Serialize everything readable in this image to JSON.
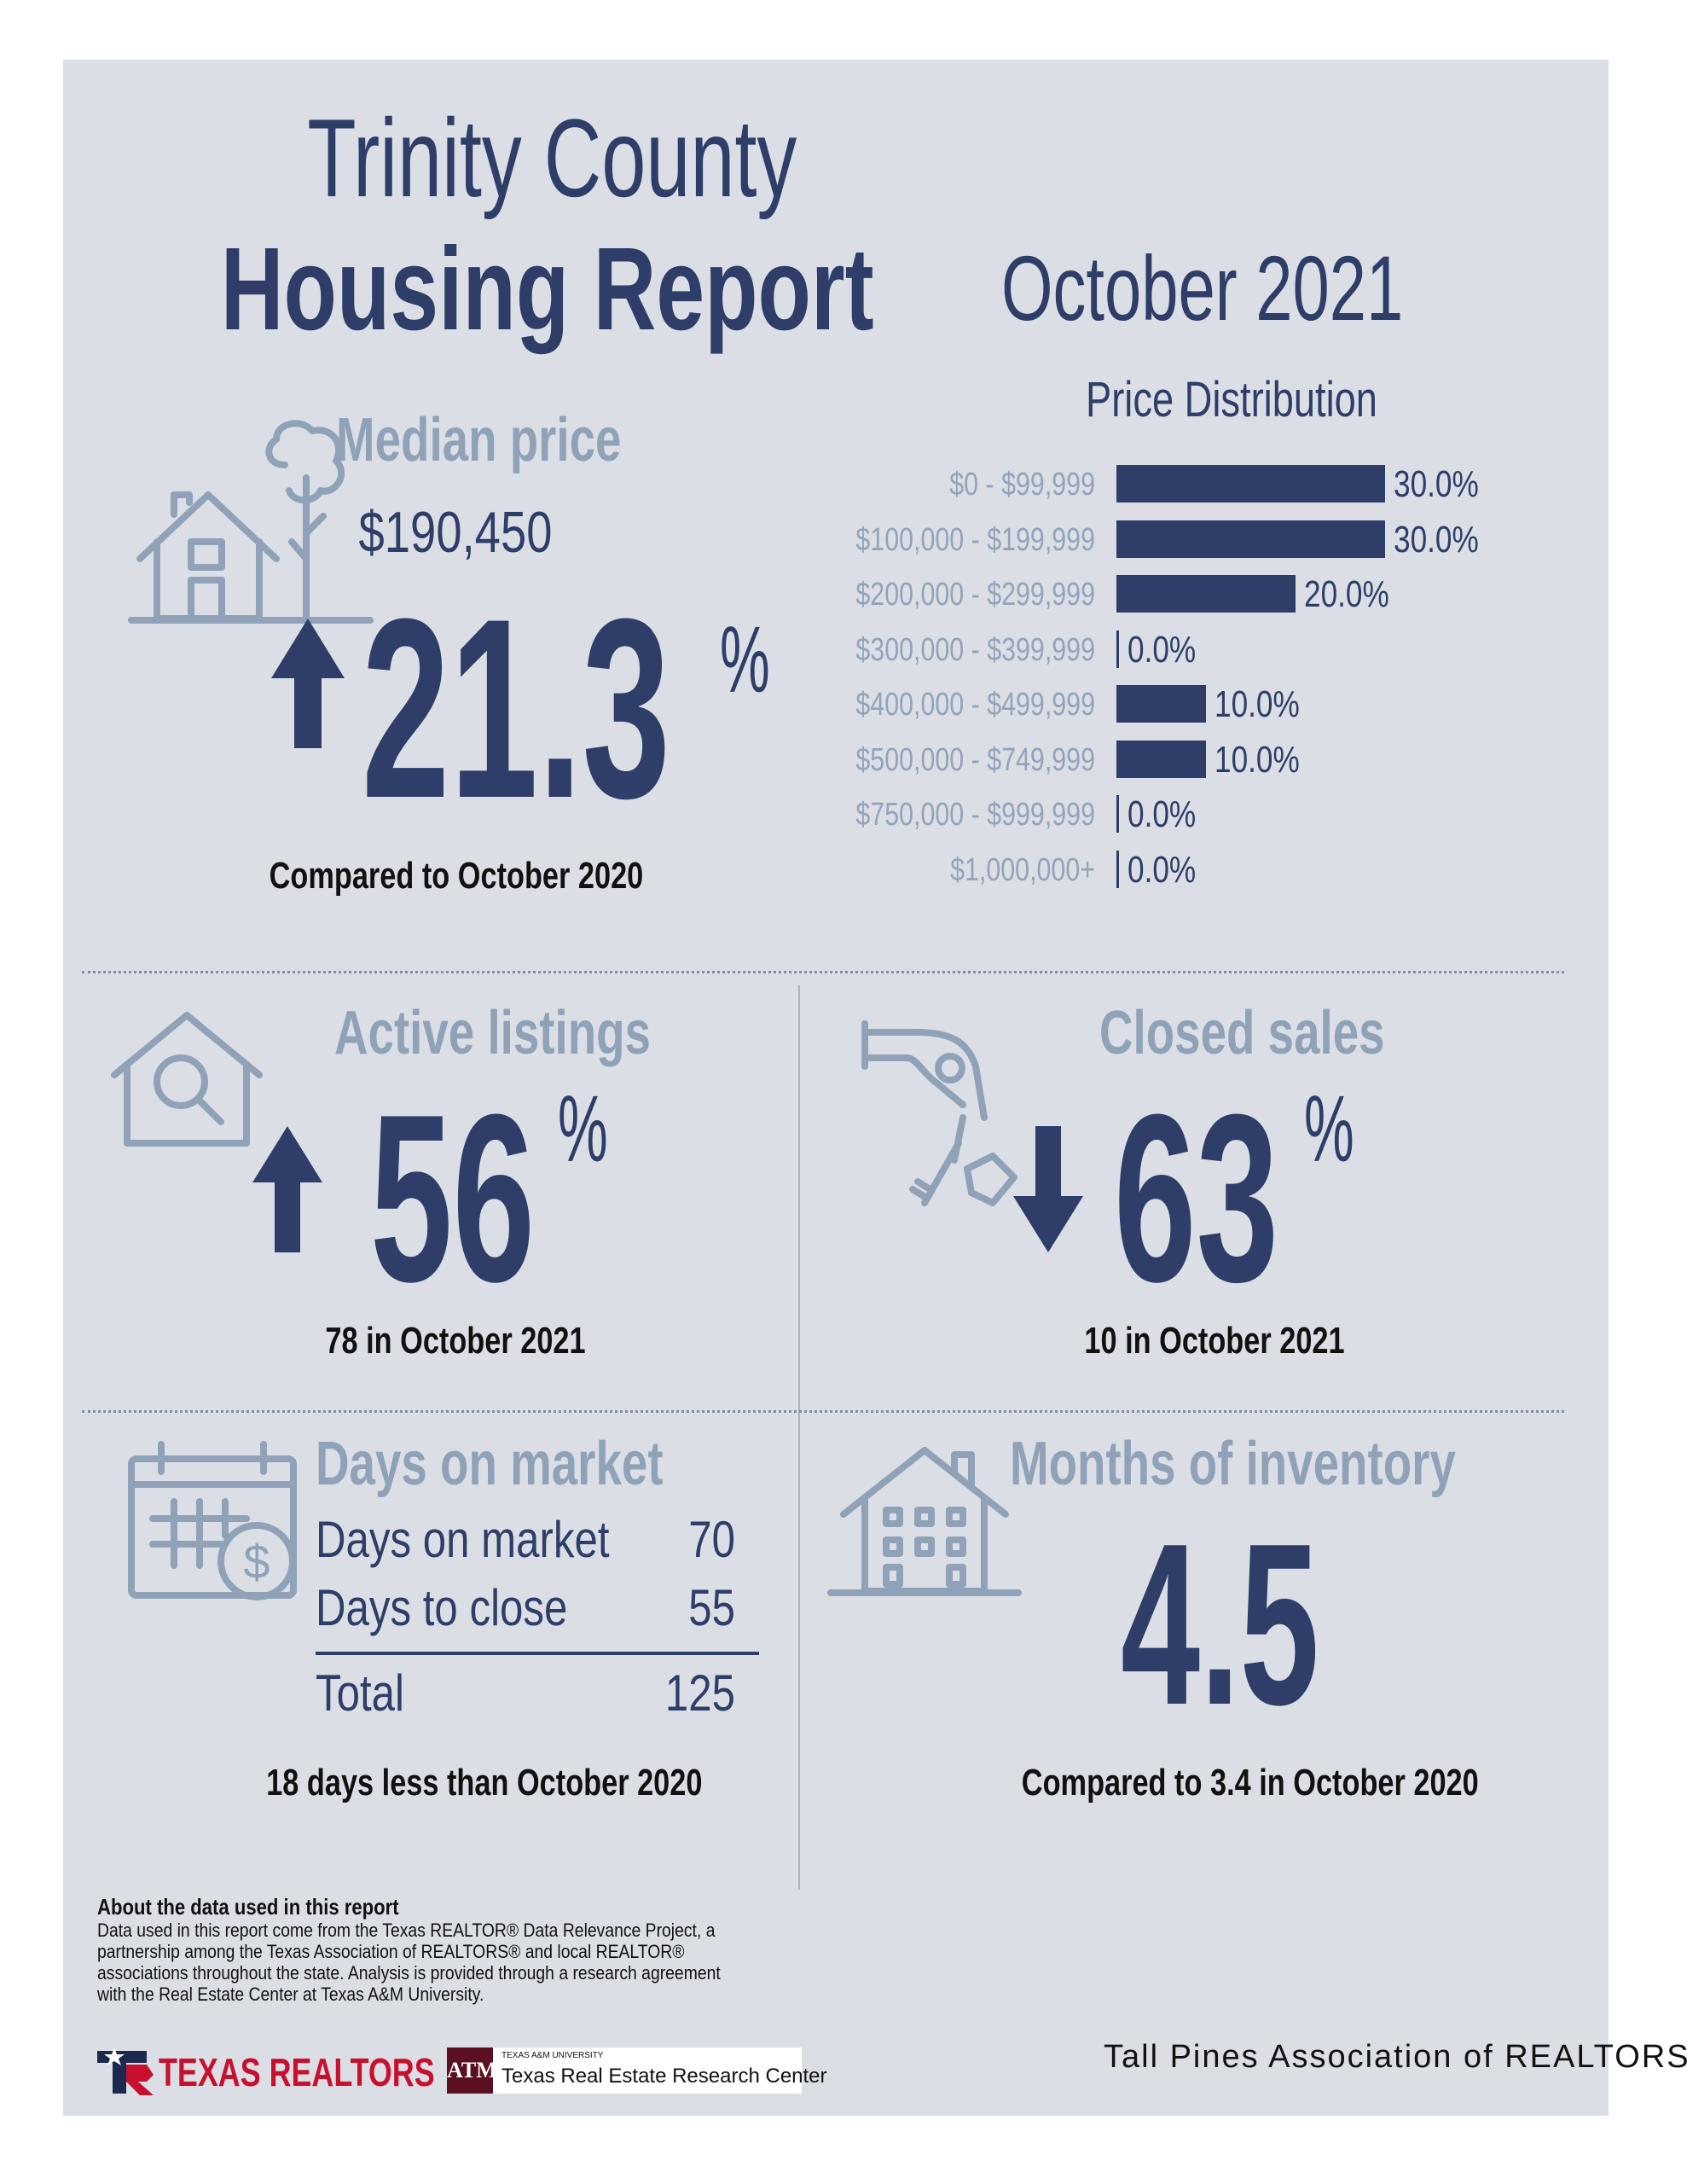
{
  "header": {
    "title_line1": "Trinity County",
    "title_line2": "Housing Report",
    "month": "October 2021"
  },
  "median_price": {
    "label": "Median price",
    "value": "$190,450",
    "change": "21.3",
    "percent_sign": "%",
    "direction": "up",
    "caption": "Compared to October 2020"
  },
  "chart_data": {
    "type": "bar",
    "title": "Price Distribution",
    "orientation": "horizontal",
    "categories": [
      "$0 - $99,999",
      "$100,000 - $199,999",
      "$200,000 - $299,999",
      "$300,000 - $399,999",
      "$400,000 - $499,999",
      "$500,000 - $749,999",
      "$750,000 - $999,999",
      "$1,000,000+"
    ],
    "values": [
      30.0,
      30.0,
      20.0,
      0.0,
      10.0,
      10.0,
      0.0,
      0.0
    ],
    "value_labels": [
      "30.0%",
      "30.0%",
      "20.0%",
      "0.0%",
      "10.0%",
      "10.0%",
      "0.0%",
      "0.0%"
    ],
    "xlim": [
      0,
      30
    ],
    "color": "#2e3e69"
  },
  "active_listings": {
    "label": "Active listings",
    "change": "56",
    "percent_sign": "%",
    "direction": "up",
    "caption": "78 in October 2021"
  },
  "closed_sales": {
    "label": "Closed sales",
    "change": "63",
    "percent_sign": "%",
    "direction": "down",
    "caption": "10 in October 2021"
  },
  "days_on_market": {
    "label": "Days on market",
    "rows": [
      {
        "name": "Days on market",
        "value": "70"
      },
      {
        "name": "Days to close",
        "value": "55"
      }
    ],
    "total_label": "Total",
    "total_value": "125",
    "caption": "18 days less than October 2020"
  },
  "months_inventory": {
    "label": "Months of inventory",
    "value": "4.5",
    "caption": "Compared to 3.4 in October 2020"
  },
  "about": {
    "heading": "About the data used in this report",
    "text": "Data used in this report come from the Texas REALTOR® Data Relevance Project, a partnership among the Texas Association of REALTORS® and local REALTOR® associations throughout the state. Analysis is provided through a research agreement with the Real Estate Center at Texas A&M University."
  },
  "footer": {
    "texas_realtors": "TEXAS REALTORS",
    "tamu_small": "TEXAS A&M UNIVERSITY",
    "tamu_center": "Texas Real Estate Research Center",
    "association": "Tall Pines Association of REALTORS®"
  },
  "colors": {
    "background": "#dbdfe5",
    "navy": "#2e3e69",
    "muted": "#8fa2b8",
    "red": "#c8102e"
  }
}
